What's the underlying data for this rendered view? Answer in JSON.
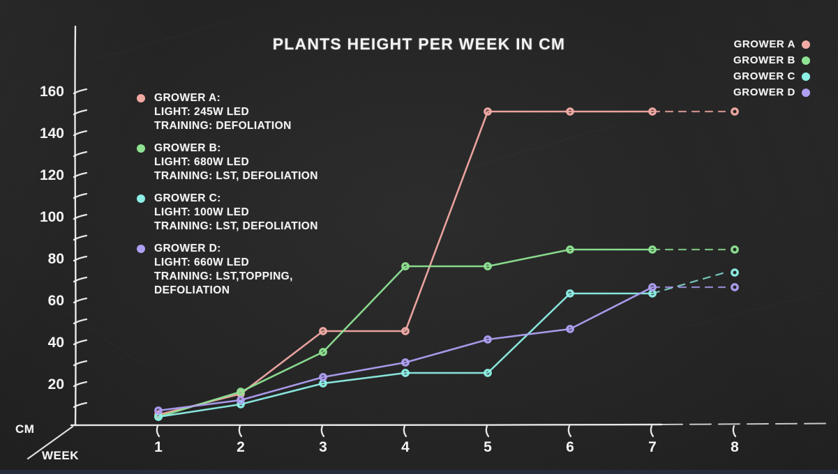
{
  "page": {
    "background": "#232323",
    "text_color": "#f4f4f4",
    "bottom_strip_color": "#262c3b"
  },
  "chart_data": {
    "type": "line",
    "title": "PLANTS HEIGHT PER WEEK IN CM",
    "xlabel": "WEEK",
    "ylabel": "CM",
    "x": [
      1,
      2,
      3,
      4,
      5,
      6,
      7,
      8
    ],
    "x_tick_labels": [
      "1",
      "2",
      "3",
      "4",
      "5",
      "6",
      "7",
      "8"
    ],
    "y_major_ticks": [
      20,
      40,
      60,
      80,
      100,
      120,
      140,
      160
    ],
    "y_minor_step": 10,
    "ylim": [
      0,
      170
    ],
    "grid": false,
    "legend_position": "top-right",
    "style": "hand-drawn chalkboard, last segment dashed, ring markers",
    "series": [
      {
        "name": "GROWER A",
        "color": "#f2a9a4",
        "values": [
          5,
          15,
          45,
          45,
          150,
          150,
          150,
          150
        ]
      },
      {
        "name": "GROWER B",
        "color": "#8ee393",
        "values": [
          4,
          16,
          35,
          76,
          76,
          84,
          84,
          84
        ]
      },
      {
        "name": "GROWER C",
        "color": "#8deee5",
        "values": [
          4,
          10,
          20,
          25,
          25,
          63,
          63,
          73
        ]
      },
      {
        "name": "GROWER D",
        "color": "#ae9ff2",
        "values": [
          7,
          12,
          23,
          30,
          41,
          46,
          66,
          66
        ]
      }
    ]
  },
  "legend": {
    "items": [
      {
        "label": "GROWER A",
        "color": "#f2a9a4"
      },
      {
        "label": "GROWER B",
        "color": "#8ee393"
      },
      {
        "label": "GROWER C",
        "color": "#8deee5"
      },
      {
        "label": "GROWER D",
        "color": "#ae9ff2"
      }
    ]
  },
  "annotations": [
    {
      "color": "#f2a9a4",
      "lines": [
        "GROWER A:",
        "LIGHT: 245W LED",
        "TRAINING: DEFOLIATION"
      ]
    },
    {
      "color": "#8ee393",
      "lines": [
        "GROWER B:",
        "LIGHT: 680W LED",
        "TRAINING: LST, DEFOLIATION"
      ]
    },
    {
      "color": "#8deee5",
      "lines": [
        "GROWER C:",
        "LIGHT: 100W LED",
        "TRAINING: LST, DEFOLIATION"
      ]
    },
    {
      "color": "#ae9ff2",
      "lines": [
        "GROWER D:",
        "LIGHT: 660W LED",
        "TRAINING: LST,TOPPING,",
        "DEFOLIATION"
      ]
    }
  ]
}
